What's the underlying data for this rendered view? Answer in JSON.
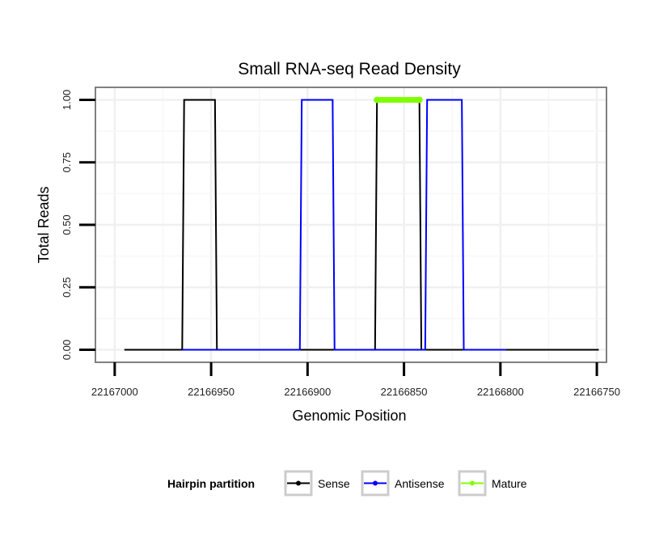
{
  "chart_data": {
    "type": "line",
    "title": "Small RNA-seq Read Density",
    "xlabel": "Genomic Position",
    "ylabel": "Total Reads",
    "x_reversed": true,
    "xlim": [
      22167010,
      22166745
    ],
    "ylim": [
      -0.05,
      1.05
    ],
    "x_ticks": [
      22167000,
      22166950,
      22166900,
      22166850,
      22166800,
      22166750
    ],
    "x_tick_labels": [
      "22167000",
      "22166950",
      "22166900",
      "22166850",
      "22166800",
      "22166750"
    ],
    "y_ticks": [
      0,
      0.25,
      0.5,
      0.75,
      1.0
    ],
    "y_tick_labels": [
      "0.00",
      "0.25",
      "0.50",
      "0.75",
      "1.00"
    ],
    "grid": true,
    "legend_title": "Hairpin partition",
    "legend_position": "bottom",
    "series": [
      {
        "name": "Sense",
        "color": "#000000",
        "x": [
          22166995,
          22166965,
          22166964,
          22166948,
          22166947,
          22166865,
          22166864,
          22166842,
          22166841,
          22166749
        ],
        "y": [
          0,
          0,
          1,
          1,
          0,
          0,
          1,
          1,
          0,
          0
        ]
      },
      {
        "name": "Antisense",
        "color": "#0000ff",
        "x": [
          22166965,
          22166947,
          22166904,
          22166903,
          22166887,
          22166886,
          22166865,
          22166841,
          22166839,
          22166838,
          22166820,
          22166819,
          22166797
        ],
        "y": [
          0,
          0,
          0,
          1,
          1,
          0,
          0,
          0,
          0,
          1,
          1,
          0,
          0
        ]
      },
      {
        "name": "Mature",
        "color": "#7fff00",
        "x": [
          22166864,
          22166842
        ],
        "y": [
          1,
          1
        ]
      }
    ]
  }
}
